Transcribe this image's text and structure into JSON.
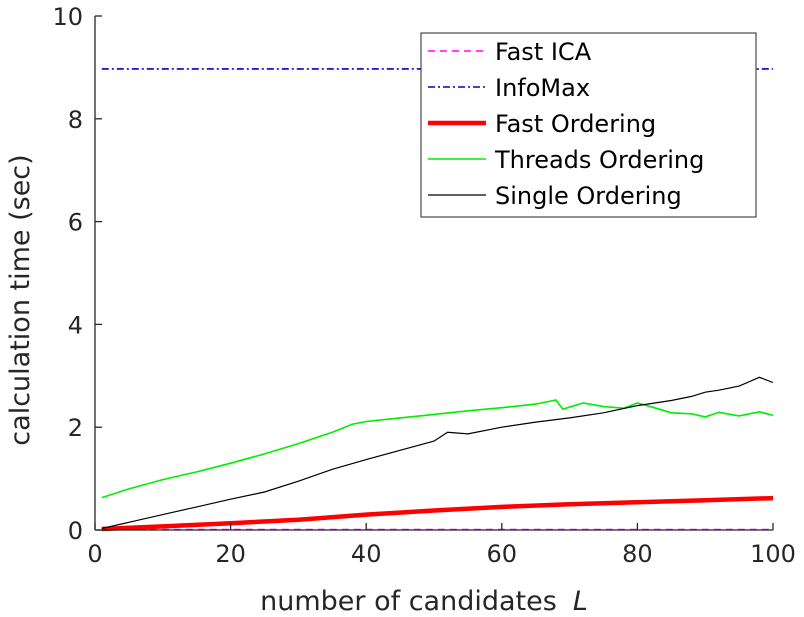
{
  "chart_data": {
    "type": "line",
    "xlabel": "number of candidates",
    "xlabel_var": "L",
    "ylabel": "calculation time (sec)",
    "xlim": [
      0,
      100
    ],
    "ylim": [
      0,
      10
    ],
    "xticks": [
      "0",
      "20",
      "40",
      "60",
      "80",
      "100"
    ],
    "yticks": [
      "0",
      "2",
      "4",
      "6",
      "8",
      "10"
    ],
    "grid": false,
    "legend_position": "top-right",
    "series": [
      {
        "name": "Fast ICA",
        "color": "#ff00ff",
        "style": "dashed",
        "x": [
          1,
          100
        ],
        "y": [
          0.01,
          0.01
        ]
      },
      {
        "name": "InfoMax",
        "color": "#0000cc",
        "style": "dash-dot",
        "x": [
          1,
          100
        ],
        "y": [
          8.97,
          8.97
        ]
      },
      {
        "name": "Fast Ordering",
        "color": "#ff0000",
        "style": "thick",
        "x": [
          1,
          10,
          20,
          30,
          40,
          50,
          60,
          70,
          80,
          90,
          100
        ],
        "y": [
          0.02,
          0.07,
          0.13,
          0.2,
          0.3,
          0.38,
          0.45,
          0.5,
          0.54,
          0.58,
          0.62
        ]
      },
      {
        "name": "Threads Ordering",
        "color": "#00ee00",
        "style": "solid",
        "x": [
          1,
          5,
          10,
          15,
          20,
          25,
          30,
          35,
          38,
          40,
          45,
          50,
          55,
          60,
          65,
          68,
          69,
          72,
          75,
          78,
          80,
          83,
          85,
          88,
          90,
          92,
          95,
          98,
          100
        ],
        "y": [
          0.63,
          0.8,
          0.98,
          1.13,
          1.3,
          1.48,
          1.68,
          1.9,
          2.06,
          2.11,
          2.18,
          2.25,
          2.32,
          2.38,
          2.45,
          2.53,
          2.35,
          2.47,
          2.4,
          2.37,
          2.47,
          2.36,
          2.28,
          2.26,
          2.2,
          2.29,
          2.22,
          2.3,
          2.23
        ]
      },
      {
        "name": "Single Ordering",
        "color": "#000000",
        "style": "solid",
        "x": [
          1,
          5,
          10,
          15,
          20,
          25,
          30,
          35,
          40,
          45,
          50,
          52,
          55,
          60,
          65,
          70,
          75,
          80,
          85,
          88,
          90,
          92,
          95,
          98,
          100
        ],
        "y": [
          0.03,
          0.15,
          0.3,
          0.45,
          0.6,
          0.74,
          0.95,
          1.18,
          1.37,
          1.55,
          1.73,
          1.9,
          1.87,
          2.0,
          2.1,
          2.18,
          2.28,
          2.42,
          2.52,
          2.6,
          2.68,
          2.72,
          2.8,
          2.97,
          2.87
        ]
      }
    ]
  }
}
